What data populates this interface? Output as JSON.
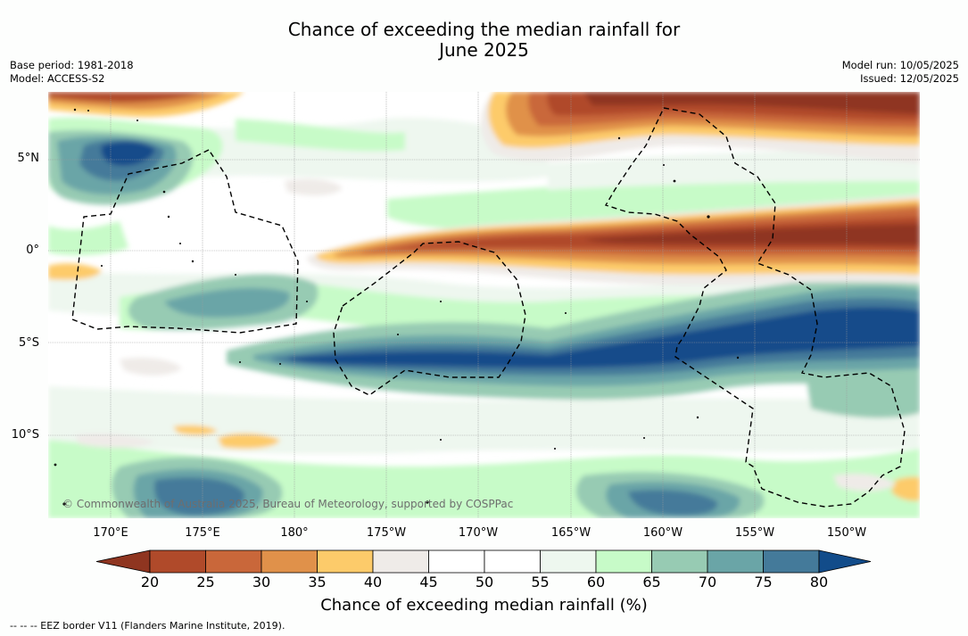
{
  "title_line1": "Chance of exceeding the median rainfall for",
  "title_line2": "June 2025",
  "base_period": "Base period: 1981-2018",
  "model": "Model: ACCESS-S2",
  "model_run": "Model run: 10/05/2025",
  "issued": "Issued: 12/05/2025",
  "lat_labels": [
    "5°N",
    "0°",
    "5°S",
    "10°S"
  ],
  "lon_labels": [
    "170°E",
    "175°E",
    "180°",
    "175°W",
    "170°W",
    "165°W",
    "160°W",
    "155°W",
    "150°W"
  ],
  "copyright": "© Commonwealth of Australia 2025, Bureau of Meteorology, supported by COSPPac",
  "colorbar": {
    "ticks": [
      "20",
      "25",
      "30",
      "35",
      "40",
      "45",
      "50",
      "55",
      "60",
      "65",
      "70",
      "75",
      "80"
    ],
    "label": "Chance of exceeding median rainfall (%)",
    "colors": [
      "#8f3520",
      "#b04a2a",
      "#c9673a",
      "#e0914a",
      "#fdcb6a",
      "#efebe8",
      "#ffffff",
      "#ffffff",
      "#eef7ef",
      "#c7fbc8",
      "#97cbb3",
      "#6aa5a7",
      "#447a9a",
      "#124c8a"
    ]
  },
  "footnote": "--  --  -- EEZ border V11 (Flanders Marine Institute, 2019)."
}
